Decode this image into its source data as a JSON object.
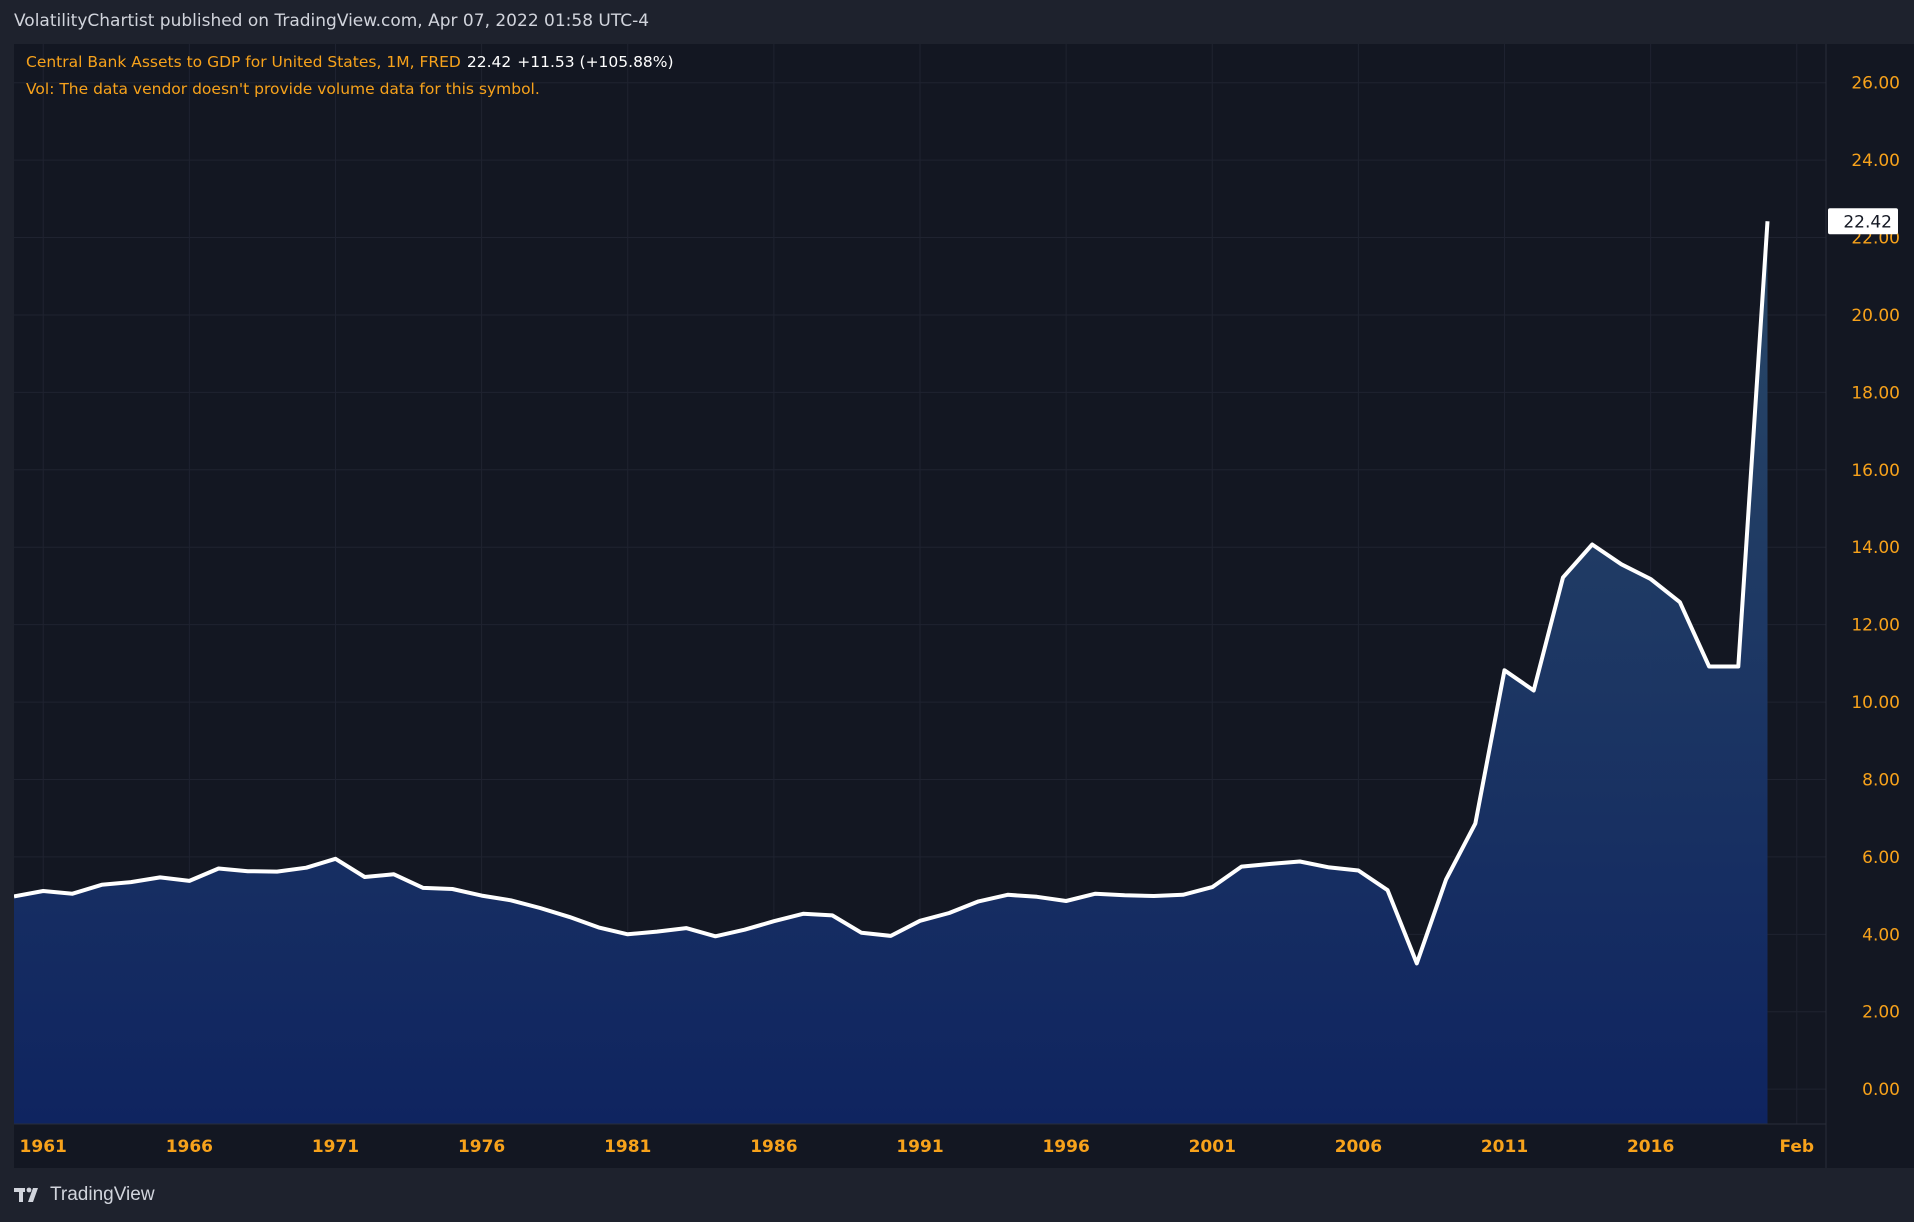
{
  "header": {
    "published_text": "VolatilityChartist published on TradingView.com, Apr 07, 2022 01:58 UTC-4"
  },
  "legend": {
    "series_name": "Central Bank Assets to GDP for United States, 1M, FRED",
    "last_value": "22.42",
    "change": "+11.53 (+105.88%)",
    "volume_note": "Vol: The data vendor doesn't provide volume data for this symbol."
  },
  "footer": {
    "logo_text": "TradingView"
  },
  "colors": {
    "background": "#131722",
    "axis_text": "#f7a21b",
    "line": "#ffffff",
    "fill_top": "#2a4a6a",
    "fill_bottom": "#0f2460"
  },
  "chart_data": {
    "type": "area",
    "title": "Central Bank Assets to GDP for United States, 1M, FRED",
    "xlabel": "",
    "ylabel": "",
    "x": [
      1960,
      1961,
      1962,
      1963,
      1964,
      1965,
      1966,
      1967,
      1968,
      1969,
      1970,
      1971,
      1972,
      1973,
      1974,
      1975,
      1976,
      1977,
      1978,
      1979,
      1980,
      1981,
      1982,
      1983,
      1984,
      1985,
      1986,
      1987,
      1988,
      1989,
      1990,
      1991,
      1992,
      1993,
      1994,
      1995,
      1996,
      1997,
      1998,
      1999,
      2000,
      2001,
      2002,
      2003,
      2004,
      2005,
      2006,
      2007,
      2008,
      2009,
      2010,
      2011,
      2012,
      2013,
      2014,
      2015,
      2016,
      2017,
      2018,
      2019,
      2020
    ],
    "values": [
      4.98,
      5.12,
      5.05,
      5.28,
      5.35,
      5.47,
      5.38,
      5.7,
      5.63,
      5.62,
      5.72,
      5.95,
      5.48,
      5.55,
      5.2,
      5.17,
      5.0,
      4.88,
      4.68,
      4.45,
      4.18,
      4.0,
      4.07,
      4.16,
      3.95,
      4.12,
      4.34,
      4.53,
      4.49,
      4.04,
      3.96,
      4.35,
      4.55,
      4.85,
      5.02,
      4.97,
      4.86,
      5.05,
      5.01,
      4.99,
      5.02,
      5.22,
      5.75,
      5.82,
      5.88,
      5.73,
      5.65,
      5.14,
      3.25,
      5.42,
      6.86,
      10.82,
      10.3,
      13.22,
      14.07,
      13.56,
      13.18,
      12.58,
      10.92,
      10.92,
      22.42
    ],
    "x_tick_labels": [
      "1961",
      "1966",
      "1971",
      "1976",
      "1981",
      "1986",
      "1991",
      "1996",
      "2001",
      "2006",
      "2011",
      "2016",
      "Feb"
    ],
    "x_tick_positions": [
      1961,
      1966,
      1971,
      1976,
      1981,
      1986,
      1991,
      1996,
      2001,
      2006,
      2011,
      2016,
      2021
    ],
    "y_ticks": [
      "0.00",
      "2.00",
      "4.00",
      "6.00",
      "8.00",
      "10.00",
      "12.00",
      "14.00",
      "16.00",
      "18.00",
      "20.00",
      "22.00",
      "24.00",
      "26.00"
    ],
    "ylim": [
      -0.9,
      27.0
    ],
    "xlim": [
      1960,
      2022.0
    ],
    "last_value_label": "22.42",
    "grid": true
  }
}
